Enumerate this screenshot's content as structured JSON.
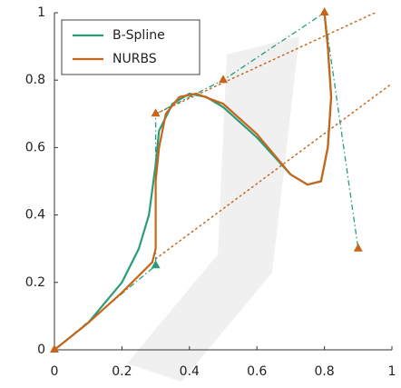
{
  "chart_data": {
    "type": "line",
    "xlim": [
      0,
      1
    ],
    "ylim": [
      0,
      1
    ],
    "xticks": [
      0,
      0.2,
      0.4,
      0.6,
      0.8,
      1
    ],
    "yticks": [
      0,
      0.2,
      0.4,
      0.6,
      0.8,
      1
    ],
    "legend": "upper left",
    "series": [
      {
        "name": "B-Spline",
        "color": "#2a9d78",
        "x": [
          0,
          0.1,
          0.2,
          0.25,
          0.28,
          0.3,
          0.31,
          0.35,
          0.4,
          0.45,
          0.5,
          0.6,
          0.7,
          0.75,
          0.79,
          0.81,
          0.82,
          0.81,
          0.8
        ],
        "values": [
          0,
          0.08,
          0.2,
          0.3,
          0.4,
          0.55,
          0.65,
          0.73,
          0.76,
          0.75,
          0.72,
          0.63,
          0.52,
          0.49,
          0.5,
          0.6,
          0.75,
          0.9,
          1
        ]
      },
      {
        "name": "NURBS",
        "color": "#c8651b",
        "x": [
          0,
          0.1,
          0.2,
          0.29,
          0.3,
          0.3,
          0.31,
          0.33,
          0.37,
          0.42,
          0.5,
          0.6,
          0.7,
          0.75,
          0.79,
          0.81,
          0.82,
          0.81,
          0.8
        ],
        "values": [
          0,
          0.08,
          0.17,
          0.26,
          0.3,
          0.5,
          0.6,
          0.7,
          0.75,
          0.76,
          0.73,
          0.64,
          0.52,
          0.49,
          0.5,
          0.6,
          0.75,
          0.9,
          1
        ]
      }
    ],
    "control_polygon": {
      "color": "#2a9d78",
      "x": [
        0,
        0.3,
        0.3,
        0.5,
        0.8,
        0.9
      ],
      "y": [
        0,
        0.25,
        0.7,
        0.8,
        1,
        0.3
      ],
      "marker_colors": [
        "#c8651b",
        "#2a9d78",
        "#c8651b",
        "#c8651b",
        "#c8651b",
        "#c8651b"
      ]
    },
    "construction_lines": {
      "color": "#c8651b",
      "lines": [
        {
          "x": [
            0.3,
            1
          ],
          "y": [
            0.27,
            0.79
          ]
        },
        {
          "x": [
            0.3,
            0.95
          ],
          "y": [
            0.7,
            1
          ]
        }
      ]
    }
  }
}
